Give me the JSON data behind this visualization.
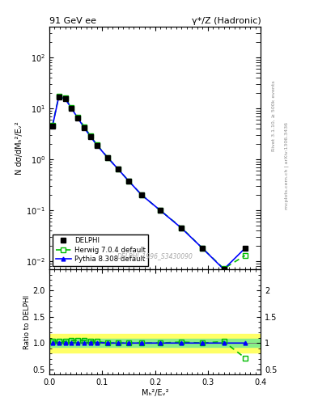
{
  "title_left": "91 GeV ee",
  "title_right": "γ*/Z (Hadronic)",
  "ylabel_main": "N dσ/dMₕ²/Eᵥ²",
  "ylabel_ratio": "Ratio to DELPHI",
  "xlabel": "Mₕ²/Eᵥ²",
  "right_label_top": "Rivet 3.1.10, ≥ 500k events",
  "right_label_bot": "mcplots.cern.ch | arXiv:1306.3436",
  "watermark": "DELPHI_1996_S3430090",
  "x_data": [
    0.006,
    0.018,
    0.03,
    0.042,
    0.054,
    0.066,
    0.078,
    0.09,
    0.11,
    0.13,
    0.15,
    0.175,
    0.21,
    0.25,
    0.29,
    0.33,
    0.37
  ],
  "delphi_y": [
    4.5,
    17.0,
    15.5,
    10.0,
    6.5,
    4.2,
    2.8,
    1.9,
    1.1,
    0.65,
    0.38,
    0.2,
    0.1,
    0.045,
    0.018,
    0.007,
    0.018
  ],
  "herwig_y": [
    4.7,
    17.5,
    16.0,
    10.5,
    6.8,
    4.4,
    2.9,
    1.95,
    1.1,
    0.65,
    0.38,
    0.2,
    0.1,
    0.046,
    0.018,
    0.0072,
    0.013
  ],
  "pythia_y": [
    4.5,
    17.1,
    15.5,
    10.1,
    6.5,
    4.2,
    2.82,
    1.91,
    1.1,
    0.65,
    0.38,
    0.2,
    0.1,
    0.045,
    0.018,
    0.007,
    0.018
  ],
  "herwig_ratio": [
    1.04,
    1.03,
    1.03,
    1.05,
    1.05,
    1.05,
    1.04,
    1.03,
    1.0,
    1.0,
    1.0,
    1.0,
    1.0,
    1.02,
    1.0,
    1.03,
    0.72
  ],
  "pythia_ratio": [
    1.0,
    1.01,
    1.0,
    1.01,
    1.0,
    1.0,
    1.01,
    1.01,
    1.0,
    1.0,
    1.0,
    1.0,
    1.0,
    1.0,
    1.0,
    1.0,
    1.0
  ],
  "delphi_color": "#000000",
  "herwig_color": "#00bb00",
  "pythia_color": "#0000ff",
  "band_yellow": "#ffff66",
  "band_green": "#88ee88",
  "ylim_main": [
    0.007,
    400
  ],
  "ylim_ratio": [
    0.4,
    2.4
  ],
  "xlim": [
    0.0,
    0.4
  ],
  "ratio_yticks": [
    0.5,
    1.0,
    1.5,
    2.0
  ]
}
